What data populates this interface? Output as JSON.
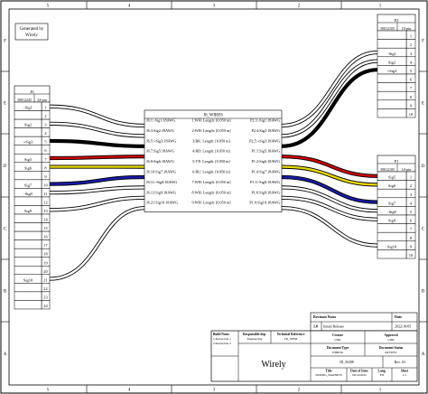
{
  "frame": {
    "columns": [
      "5",
      "4",
      "3",
      "2",
      "1"
    ],
    "rows": [
      "F",
      "E",
      "D",
      "C",
      "B",
      "A"
    ]
  },
  "generator_note": [
    "Generated by",
    "Wirely"
  ],
  "j6": {
    "name": "J6",
    "part": "39012245",
    "pins_label": "24-pin",
    "pins": [
      {
        "n": "1",
        "sig": "-Sig1"
      },
      {
        "n": "2",
        "sig": ""
      },
      {
        "n": "3",
        "sig": "Sig2"
      },
      {
        "n": "4",
        "sig": ""
      },
      {
        "n": "5",
        "sig": "+Sig3"
      },
      {
        "n": "6",
        "sig": ""
      },
      {
        "n": "7",
        "sig": "Sig5"
      },
      {
        "n": "8",
        "sig": "Sig6"
      },
      {
        "n": "9",
        "sig": ""
      },
      {
        "n": "10",
        "sig": "Sig7"
      },
      {
        "n": "11",
        "sig": "-Sig8"
      },
      {
        "n": "12",
        "sig": ""
      },
      {
        "n": "13",
        "sig": "Sig9"
      },
      {
        "n": "14",
        "sig": ""
      },
      {
        "n": "15",
        "sig": ""
      },
      {
        "n": "16",
        "sig": ""
      },
      {
        "n": "17",
        "sig": ""
      },
      {
        "n": "18",
        "sig": ""
      },
      {
        "n": "19",
        "sig": ""
      },
      {
        "n": "20",
        "sig": ""
      },
      {
        "n": "21",
        "sig": "Sig10"
      },
      {
        "n": "22",
        "sig": ""
      },
      {
        "n": "23",
        "sig": ""
      },
      {
        "n": "24",
        "sig": ""
      }
    ]
  },
  "p2": {
    "name": "P2",
    "part": "39012105",
    "pins_label": "10-pin",
    "pins": [
      {
        "n": "1",
        "sig": ""
      },
      {
        "n": "2",
        "sig": ""
      },
      {
        "n": "3",
        "sig": "-Sig1"
      },
      {
        "n": "4",
        "sig": "Sig2"
      },
      {
        "n": "5",
        "sig": "+Sig3"
      },
      {
        "n": "6",
        "sig": ""
      },
      {
        "n": "7",
        "sig": ""
      },
      {
        "n": "8",
        "sig": ""
      },
      {
        "n": "9",
        "sig": ""
      },
      {
        "n": "10",
        "sig": ""
      }
    ]
  },
  "p1": {
    "name": "P1",
    "part": "39012105",
    "pins_label": "10-pin",
    "pins": [
      {
        "n": "1",
        "sig": "Sig5"
      },
      {
        "n": "2",
        "sig": "Sig6"
      },
      {
        "n": "3",
        "sig": ""
      },
      {
        "n": "4",
        "sig": "Sig7"
      },
      {
        "n": "5",
        "sig": "-Sig8"
      },
      {
        "n": "6",
        "sig": "Sig9"
      },
      {
        "n": "7",
        "sig": ""
      },
      {
        "n": "8",
        "sig": ""
      },
      {
        "n": "9",
        "sig": "Sig10"
      },
      {
        "n": "10",
        "sig": ""
      }
    ]
  },
  "wires": {
    "title": "J6_WIRES",
    "rows": [
      {
        "from": "J6:1:-Sig1:18AWG",
        "spec": "1:WH:  Length: [0.050 m]",
        "to": "P2:3:-Sig1:18AWG",
        "color": "#ffffff",
        "j6pin": 1,
        "dest": "p2",
        "destpin": 3
      },
      {
        "from": "J6:3:Sig2:18AWG",
        "spec": "2:WH:  Length: [0.050 m]",
        "to": "P2:4:Sig2:18AWG",
        "color": "#ffffff",
        "j6pin": 3,
        "dest": "p2",
        "destpin": 4
      },
      {
        "from": "J6:5:+Sig3:18AWG",
        "spec": "3:BK:  Length: [0.050 m]",
        "to": "P2:5:+Sig3:18AWG",
        "color": "#000000",
        "j6pin": 5,
        "dest": "p2",
        "destpin": 5
      },
      {
        "from": "J6:7:Sig5:18AWG",
        "spec": "4:RD:  Length: [0.050 m]",
        "to": "P1:1:Sig5:18AWG",
        "color": "#cc0000",
        "j6pin": 7,
        "dest": "p1",
        "destpin": 1
      },
      {
        "from": "J6:8:Sig6:18AWG",
        "spec": "5:YE:  Length: [0.050 m]",
        "to": "P1:2:Sig6:18AWG",
        "color": "#e6d800",
        "j6pin": 8,
        "dest": "p1",
        "destpin": 2
      },
      {
        "from": "J6:10:Sig7:18AWG",
        "spec": "6:BU:  Length: [0.050 m]",
        "to": "P1:4:Sig7:18AWG",
        "color": "#1a1aaa",
        "j6pin": 10,
        "dest": "p1",
        "destpin": 4
      },
      {
        "from": "J6:11:-Sig8:18AWG",
        "spec": "7:WH:  Length: [0.050 m]",
        "to": "P1:5:-Sig8:18AWG",
        "color": "#ffffff",
        "j6pin": 11,
        "dest": "p1",
        "destpin": 5
      },
      {
        "from": "J6:13:Sig9:18AWG",
        "spec": "8:WH:  Length: [0.050 m]",
        "to": "P1:6:Sig9:18AWG",
        "color": "#ffffff",
        "j6pin": 13,
        "dest": "p1",
        "destpin": 6
      },
      {
        "from": "J6:21:Sig10:18AWG",
        "spec": "9:WH:  Length: [0.050 m]",
        "to": "P1:9:Sig10:18AWG",
        "color": "#ffffff",
        "j6pin": 21,
        "dest": "p1",
        "destpin": 9
      }
    ]
  },
  "revision": {
    "header_notes": "Revision Notes",
    "header_date": "Date",
    "rev": "1.0",
    "note": "Initial Release",
    "date": "2022/10/05"
  },
  "title_block": {
    "build_notes_label": "Build Notes",
    "build_notes": [
      "1.Instruction 1",
      "2.Instruction 2"
    ],
    "resp_dept_label": "Responsible dep.",
    "resp_dept": "Engineering",
    "tech_ref_label": "Technical Reference",
    "tech_ref": "TR_50858",
    "creator_label": "Creator",
    "creator": "UNR",
    "approved_label": "Approved",
    "approved": "UNR",
    "doc_type_label": "Document Type",
    "doc_type": "WIRING",
    "doc_status_label": "Document Status",
    "doc_status": "REVIEW",
    "logo": "Wirely",
    "id": "ID_56308",
    "rev_label": "Rev. A3",
    "title_label": "Title",
    "title": "WIRING_HARNESS",
    "issue_label": "Date of Issue",
    "issue": "08/14/2022",
    "lang_label": "Lang.",
    "lang": "EN",
    "sheet_label": "Sheet",
    "sheet": "1/1"
  },
  "colors": {
    "frame": "#000000",
    "wire_outline": "#000000"
  }
}
